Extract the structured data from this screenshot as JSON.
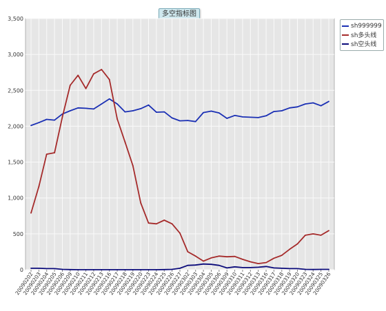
{
  "chart_data": {
    "type": "line",
    "title": "多空指标图",
    "categories": [
      "20090202",
      "20090203",
      "20090204",
      "20090205",
      "20090206",
      "20090209",
      "20090210",
      "20090211",
      "20090212",
      "20090213",
      "20090216",
      "20090217",
      "20090218",
      "20090219",
      "20090220",
      "20090223",
      "20090224",
      "20090225",
      "20090226",
      "20090227",
      "20090302",
      "20090303",
      "20090304",
      "20090305",
      "20090306",
      "20090309",
      "20090310",
      "20090311",
      "20090312",
      "20090313",
      "20090316",
      "20090317",
      "20090318",
      "20090319",
      "20090320",
      "20090323",
      "20090324",
      "20090325",
      "20090326"
    ],
    "series": [
      {
        "name": "sh999999",
        "color": "#1a2fb4",
        "values": [
          2010,
          2050,
          2095,
          2085,
          2170,
          2215,
          2255,
          2250,
          2240,
          2310,
          2380,
          2310,
          2200,
          2215,
          2245,
          2295,
          2195,
          2200,
          2115,
          2075,
          2080,
          2065,
          2190,
          2210,
          2185,
          2110,
          2150,
          2130,
          2125,
          2120,
          2145,
          2205,
          2215,
          2255,
          2270,
          2310,
          2325,
          2285,
          2345
        ]
      },
      {
        "name": "sh多头线",
        "color": "#a52a2a",
        "values": [
          790,
          1160,
          1610,
          1630,
          2130,
          2570,
          2710,
          2525,
          2730,
          2790,
          2650,
          2100,
          1780,
          1450,
          930,
          650,
          640,
          690,
          640,
          510,
          250,
          190,
          120,
          165,
          190,
          180,
          185,
          145,
          110,
          85,
          100,
          160,
          200,
          285,
          360,
          480,
          500,
          480,
          545
        ]
      },
      {
        "name": "sh空头线",
        "color": "#0a0a7a",
        "values": [
          20,
          20,
          15,
          15,
          5,
          2,
          0,
          0,
          0,
          0,
          0,
          0,
          0,
          0,
          0,
          0,
          0,
          2,
          5,
          20,
          60,
          65,
          80,
          75,
          60,
          25,
          40,
          30,
          30,
          35,
          45,
          25,
          20,
          15,
          15,
          5,
          3,
          5,
          5
        ]
      }
    ],
    "ylim": [
      0,
      3500
    ],
    "yticks": [
      "0",
      "500",
      "1,000",
      "1,500",
      "2,000",
      "2,500",
      "3,000",
      "3,500"
    ],
    "legend_position": "top-right",
    "grid": true
  }
}
